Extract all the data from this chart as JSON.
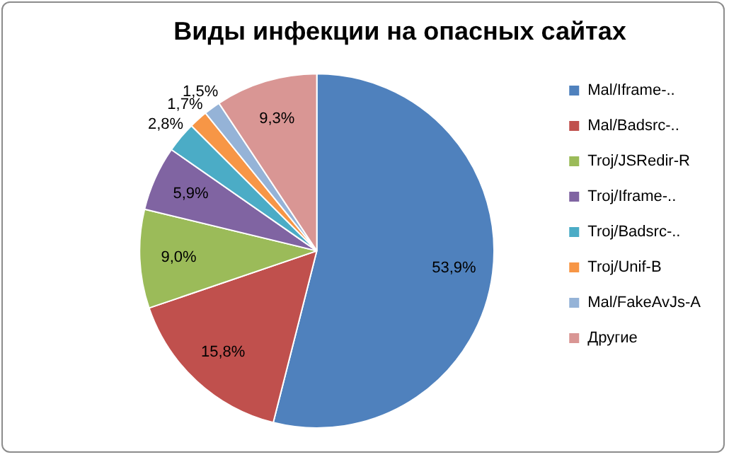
{
  "chart_data": {
    "type": "pie",
    "title": "Виды инфекции на опасных сайтах",
    "categories": [
      "Mal/Iframe-..",
      "Mal/Badsrc-..",
      "Troj/JSRedir-R",
      "Troj/Iframe-..",
      "Troj/Badsrc-..",
      "Troj/Unif-B",
      "Mal/FakeAvJs-A",
      "Другие"
    ],
    "values": [
      53.9,
      15.8,
      9.0,
      5.9,
      2.8,
      1.7,
      1.5,
      9.3
    ],
    "value_labels": [
      "53,9%",
      "15,8%",
      "9,0%",
      "5,9%",
      "2,8%",
      "1,7%",
      "1,5%",
      "9,3%"
    ],
    "colors": [
      "#4f81bd",
      "#c0504d",
      "#9bbb59",
      "#8064a2",
      "#4bacc6",
      "#f79646",
      "#95b3d7",
      "#d99694"
    ],
    "legend": "right"
  }
}
